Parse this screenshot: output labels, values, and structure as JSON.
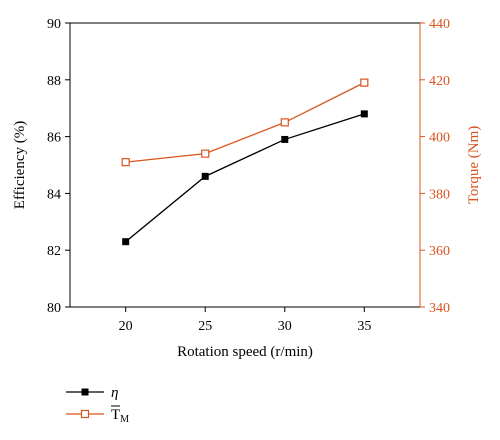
{
  "chart_data": {
    "type": "line",
    "x": [
      20,
      25,
      30,
      35
    ],
    "xlim": [
      16.5,
      38.5
    ],
    "xticks": [
      20,
      25,
      30,
      35
    ],
    "xlabel": "Rotation speed (r/min)",
    "left_axis": {
      "label": "Efficiency (%)",
      "ylim": [
        80,
        90
      ],
      "ticks": [
        80,
        82,
        84,
        86,
        88,
        90
      ],
      "color": "#000000"
    },
    "right_axis": {
      "label": "Torque (Nm)",
      "ylim": [
        340,
        440
      ],
      "ticks": [
        340,
        360,
        380,
        400,
        420,
        440
      ],
      "color": "#d9541e"
    },
    "series": [
      {
        "name": "η",
        "axis": "left",
        "values": [
          82.3,
          84.6,
          85.9,
          86.8
        ],
        "color": "#000000",
        "marker": "filled-square"
      },
      {
        "name": "T̄M",
        "name_base": "T",
        "name_sub": "M",
        "axis": "right",
        "values": [
          391,
          394,
          405,
          419
        ],
        "color": "#d9541e",
        "marker": "open-square"
      }
    ],
    "legend_placement": "bottom-left",
    "grid": false
  }
}
